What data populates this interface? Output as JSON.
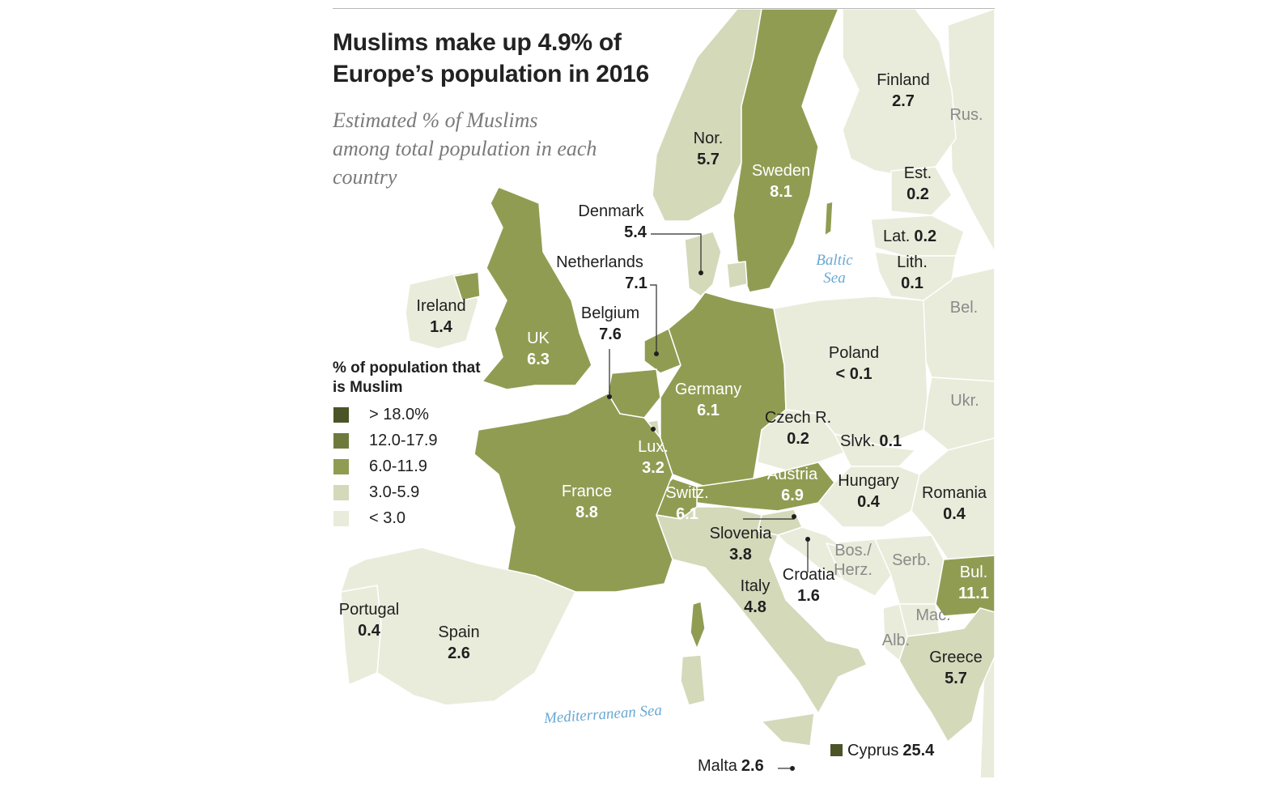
{
  "title": "Muslims make up 4.9% of Europe’s population in 2016",
  "subtitle": "Estimated % of Muslims among total population in each country",
  "colors": {
    "c1": "#4a5426",
    "c2": "#6e7a3c",
    "c3": "#919c53",
    "c4": "#d4d9ba",
    "c5": "#e9ecdb",
    "border": "#ffffff",
    "sea_label": "#6aa9d3"
  },
  "legend": {
    "title": "% of population that is Muslim",
    "items": [
      {
        "label": "> 18.0%",
        "color": "#4a5426"
      },
      {
        "label": "12.0-17.9",
        "color": "#6e7a3c"
      },
      {
        "label": "6.0-11.9",
        "color": "#919c53"
      },
      {
        "label": "3.0-5.9",
        "color": "#d4d9ba"
      },
      {
        "label": "< 3.0",
        "color": "#e9ecdb"
      }
    ]
  },
  "countries": {
    "finland": {
      "name": "Finland",
      "value": "2.7"
    },
    "norway": {
      "name": "Nor.",
      "value": "5.7"
    },
    "sweden": {
      "name": "Sweden",
      "value": "8.1"
    },
    "estonia": {
      "name": "Est.",
      "value": "0.2"
    },
    "latvia": {
      "name": "Lat.",
      "value": "0.2"
    },
    "lithuania": {
      "name": "Lith.",
      "value": "0.1"
    },
    "denmark": {
      "name": "Denmark",
      "value": "5.4"
    },
    "netherlands": {
      "name": "Netherlands",
      "value": "7.1"
    },
    "belgium": {
      "name": "Belgium",
      "value": "7.6"
    },
    "ireland": {
      "name": "Ireland",
      "value": "1.4"
    },
    "uk": {
      "name": "UK",
      "value": "6.3"
    },
    "poland": {
      "name": "Poland",
      "value": "< 0.1"
    },
    "germany": {
      "name": "Germany",
      "value": "6.1"
    },
    "czech": {
      "name": "Czech R.",
      "value": "0.2"
    },
    "slovakia": {
      "name": "Slvk.",
      "value": "0.1"
    },
    "luxembourg": {
      "name": "Lux.",
      "value": "3.2"
    },
    "austria": {
      "name": "Austria",
      "value": "6.9"
    },
    "hungary": {
      "name": "Hungary",
      "value": "0.4"
    },
    "romania": {
      "name": "Romania",
      "value": "0.4"
    },
    "france": {
      "name": "France",
      "value": "8.8"
    },
    "switzerland": {
      "name": "Switz.",
      "value": "6.1"
    },
    "slovenia": {
      "name": "Slovenia",
      "value": "3.8"
    },
    "croatia": {
      "name": "Croatia",
      "value": "1.6"
    },
    "bulgaria": {
      "name": "Bul.",
      "value": "11.1"
    },
    "italy": {
      "name": "Italy",
      "value": "4.8"
    },
    "portugal": {
      "name": "Portugal",
      "value": "0.4"
    },
    "spain": {
      "name": "Spain",
      "value": "2.6"
    },
    "greece": {
      "name": "Greece",
      "value": "5.7"
    },
    "malta": {
      "name": "Malta",
      "value": "2.6"
    },
    "cyprus": {
      "name": "Cyprus",
      "value": "25.4"
    }
  },
  "unlabeled": {
    "russia": "Rus.",
    "belarus": "Bel.",
    "ukraine": "Ukr.",
    "bosnia": "Bos./\nHerz.",
    "serbia": "Serb.",
    "macedonia": "Mac.",
    "albania": "Alb."
  },
  "seas": {
    "baltic": "Baltic\nSea",
    "mediterranean": "Mediterranean Sea"
  }
}
